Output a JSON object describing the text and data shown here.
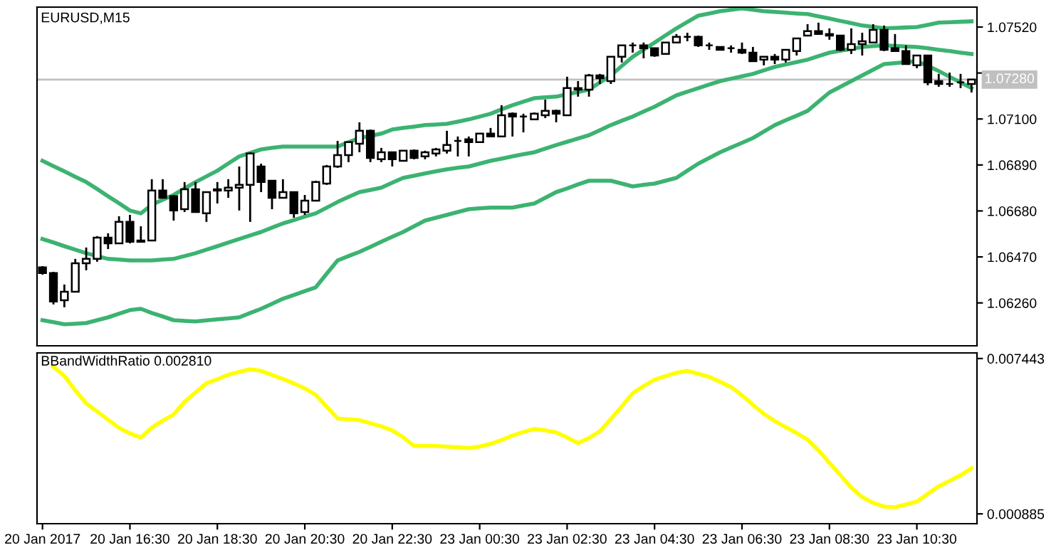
{
  "chart_data": [
    {
      "type": "candlestick",
      "title": "EURUSD,M15",
      "tick_labels": "y",
      "grid": false,
      "ylim": [
        1.06064,
        1.07611
      ],
      "yticks": [
        {
          "value": 1.0752,
          "label": "1.07520"
        },
        {
          "value": 1.0731,
          "label": null
        },
        {
          "value": 1.071,
          "label": "1.07100"
        },
        {
          "value": 1.0689,
          "label": "1.06890"
        },
        {
          "value": 1.0668,
          "label": "1.06680"
        },
        {
          "value": 1.0647,
          "label": "1.06470"
        },
        {
          "value": 1.0626,
          "label": "1.06260"
        }
      ],
      "ref_lines": [
        {
          "axis": "y",
          "value": 1.0728,
          "label": "1.07280",
          "color": "#c0c0c0"
        }
      ],
      "categories": [
        null,
        null,
        null,
        null,
        null,
        null,
        null,
        null,
        null,
        null,
        null,
        null,
        null,
        null,
        null,
        null,
        null,
        null,
        null,
        null,
        null,
        null,
        null,
        null,
        null,
        null,
        null,
        null,
        null,
        null,
        null,
        null,
        null,
        null,
        null,
        null,
        null,
        null,
        null,
        null,
        null,
        null,
        null,
        null,
        null,
        null,
        null,
        null,
        null,
        null,
        null,
        null,
        null,
        null,
        null,
        null,
        null,
        null,
        null,
        null,
        null,
        null,
        null,
        null,
        null,
        null,
        null,
        null,
        null,
        null,
        null,
        null,
        null,
        null,
        null,
        null,
        null,
        null,
        null,
        null,
        null,
        null,
        null,
        null,
        null,
        null
      ],
      "ohlc": [
        [
          1.06422,
          1.06428,
          1.06389,
          1.06396
        ],
        [
          1.06396,
          1.06402,
          1.06253,
          1.06266
        ],
        [
          1.06272,
          1.06344,
          1.0624,
          1.06311
        ],
        [
          1.06311,
          1.06461,
          1.06311,
          1.06441
        ],
        [
          1.06441,
          1.06513,
          1.06409,
          1.06461
        ],
        [
          1.06461,
          1.06565,
          1.06448,
          1.06558
        ],
        [
          1.06558,
          1.06578,
          1.06506,
          1.06532
        ],
        [
          1.06532,
          1.06656,
          1.06532,
          1.0663
        ],
        [
          1.0663,
          1.06662,
          1.06532,
          1.06539
        ],
        [
          1.06539,
          1.0661,
          1.06539,
          1.06545
        ],
        [
          1.06545,
          1.06825,
          1.06545,
          1.06773
        ],
        [
          1.06773,
          1.06825,
          1.0674,
          1.0674
        ],
        [
          1.06747,
          1.06753,
          1.06636,
          1.06682
        ],
        [
          1.06688,
          1.06812,
          1.06675,
          1.06779
        ],
        [
          1.06779,
          1.06812,
          1.06675,
          1.06675
        ],
        [
          1.06669,
          1.06766,
          1.0663,
          1.06766
        ],
        [
          1.06773,
          1.06812,
          1.06714,
          1.06779
        ],
        [
          1.06773,
          1.06825,
          1.0674,
          1.06786
        ],
        [
          1.06786,
          1.06883,
          1.06682,
          1.06799
        ],
        [
          1.06799,
          1.06948,
          1.0663,
          1.06942
        ],
        [
          1.06883,
          1.06896,
          1.06766,
          1.06812
        ],
        [
          1.06818,
          1.06818,
          1.06688,
          1.0674
        ],
        [
          1.0674,
          1.06825,
          1.0674,
          1.06766
        ],
        [
          1.06766,
          1.06766,
          1.06649,
          1.06669
        ],
        [
          1.06675,
          1.06753,
          1.06662,
          1.06727
        ],
        [
          1.06727,
          1.06818,
          1.06727,
          1.06812
        ],
        [
          1.06805,
          1.0689,
          1.06799,
          1.06883
        ],
        [
          1.06883,
          1.07,
          1.06877,
          1.06935
        ],
        [
          1.06935,
          1.06994,
          1.06903,
          1.06994
        ],
        [
          1.06987,
          1.07085,
          1.06948,
          1.07046
        ],
        [
          1.07046,
          1.07052,
          1.06903,
          1.06922
        ],
        [
          1.06916,
          1.06968,
          1.06903,
          1.06948
        ],
        [
          1.06948,
          1.06948,
          1.06883,
          1.06916
        ],
        [
          1.06909,
          1.06955,
          1.06909,
          1.06955
        ],
        [
          1.06955,
          1.06961,
          1.06916,
          1.06922
        ],
        [
          1.06929,
          1.06955,
          1.06916,
          1.06948
        ],
        [
          1.06942,
          1.06968,
          1.06929,
          1.06961
        ],
        [
          1.06955,
          1.07046,
          1.06942,
          1.06981
        ],
        [
          1.07,
          1.0702,
          1.06929,
          1.07
        ],
        [
          1.07007,
          1.0702,
          1.06929,
          1.06994
        ],
        [
          1.06994,
          1.07033,
          1.06994,
          1.07033
        ],
        [
          1.07033,
          1.07059,
          1.0702,
          1.0702
        ],
        [
          1.0702,
          1.07163,
          1.0702,
          1.07117
        ],
        [
          1.07124,
          1.0713,
          1.0702,
          1.07111
        ],
        [
          1.07111,
          1.07124,
          1.07039,
          1.07111
        ],
        [
          1.07098,
          1.0713,
          1.07098,
          1.07124
        ],
        [
          1.07117,
          1.07189,
          1.07104,
          1.07137
        ],
        [
          1.07137,
          1.07143,
          1.07085,
          1.07124
        ],
        [
          1.07117,
          1.07293,
          1.07117,
          1.07241
        ],
        [
          1.07241,
          1.07273,
          1.07202,
          1.07234
        ],
        [
          1.07234,
          1.07306,
          1.07202,
          1.07299
        ],
        [
          1.07299,
          1.07306,
          1.0726,
          1.07286
        ],
        [
          1.07273,
          1.07384,
          1.0726,
          1.07384
        ],
        [
          1.07384,
          1.07436,
          1.07358,
          1.07436
        ],
        [
          1.07436,
          1.07449,
          1.07403,
          1.07436
        ],
        [
          1.07436,
          1.07449,
          1.07377,
          1.07423
        ],
        [
          1.07423,
          1.07423,
          1.07384,
          1.0739
        ],
        [
          1.07397,
          1.07449,
          1.07397,
          1.07449
        ],
        [
          1.07449,
          1.07488,
          1.07449,
          1.07475
        ],
        [
          1.07475,
          1.07494,
          1.07455,
          1.07475
        ],
        [
          1.07475,
          1.07481,
          1.07429,
          1.07436
        ],
        [
          1.07436,
          1.07449,
          1.07416,
          1.07436
        ],
        [
          1.07429,
          1.07429,
          1.07416,
          1.07416
        ],
        [
          1.07423,
          1.07436,
          1.07403,
          1.07423
        ],
        [
          1.07416,
          1.07449,
          1.07397,
          1.07403
        ],
        [
          1.07403,
          1.07429,
          1.07364,
          1.07364
        ],
        [
          1.07371,
          1.07384,
          1.07345,
          1.07384
        ],
        [
          1.07384,
          1.07397,
          1.07351,
          1.07371
        ],
        [
          1.07371,
          1.07416,
          1.07358,
          1.07416
        ],
        [
          1.0741,
          1.07468,
          1.0739,
          1.07468
        ],
        [
          1.07481,
          1.07533,
          1.07481,
          1.07501
        ],
        [
          1.07501,
          1.0754,
          1.07488,
          1.07488
        ],
        [
          1.07488,
          1.07514,
          1.07462,
          1.07481
        ],
        [
          1.07481,
          1.07481,
          1.0741,
          1.07416
        ],
        [
          1.07416,
          1.07514,
          1.07397,
          1.07442
        ],
        [
          1.07442,
          1.07494,
          1.0739,
          1.07455
        ],
        [
          1.07449,
          1.07533,
          1.07449,
          1.07507
        ],
        [
          1.07507,
          1.07527,
          1.0741,
          1.07416
        ],
        [
          1.07423,
          1.07488,
          1.0741,
          1.0741
        ],
        [
          1.0741,
          1.07436,
          1.07351,
          1.07351
        ],
        [
          1.07345,
          1.0739,
          1.07332,
          1.0739
        ],
        [
          1.0739,
          1.0739,
          1.07254,
          1.07267
        ],
        [
          1.07273,
          1.07306,
          1.07247,
          1.0726
        ],
        [
          1.0726,
          1.07312,
          1.07247,
          1.0726
        ],
        [
          1.07267,
          1.07306,
          1.07241,
          1.07267
        ],
        [
          1.0726,
          1.0728,
          1.07221,
          1.0728
        ]
      ],
      "series": [
        {
          "type": "line",
          "color": "#3cb371",
          "values": [
            1.06909,
            1.06885,
            1.06861,
            1.06836,
            1.06812,
            1.0678,
            1.06747,
            1.06715,
            1.06682,
            1.06669,
            1.06708,
            1.06731,
            1.06753,
            1.06783,
            1.06812,
            1.06838,
            1.06864,
            1.06897,
            1.06929,
            1.06945,
            1.06961,
            1.06968,
            1.06974,
            1.06974,
            1.06974,
            1.06974,
            1.06974,
            1.06974,
            1.06994,
            1.07013,
            1.07023,
            1.07033,
            1.07052,
            1.07059,
            1.07065,
            1.07072,
            1.07075,
            1.07078,
            1.07088,
            1.07098,
            1.07111,
            1.07124,
            1.07144,
            1.07163,
            1.07179,
            1.07195,
            1.07199,
            1.07202,
            1.07213,
            1.07223,
            1.07234,
            1.07267,
            1.07299,
            1.07342,
            1.07384,
            1.07417,
            1.07449,
            1.07482,
            1.07514,
            1.07543,
            1.07572,
            1.07582,
            1.07592,
            1.07599,
            1.07605,
            1.07599,
            1.07592,
            1.07589,
            1.07586,
            1.07582,
            1.07579,
            1.07569,
            1.07559,
            1.07548,
            1.07538,
            1.07527,
            1.07521,
            1.07514,
            1.07516,
            1.07518,
            1.0752,
            1.0753,
            1.0754,
            1.07542,
            1.07544,
            1.07546
          ]
        },
        {
          "type": "line",
          "color": "#3cb371",
          "values": [
            1.06552,
            1.06536,
            1.06519,
            1.06503,
            1.06487,
            1.06474,
            1.06461,
            1.06458,
            1.06454,
            1.06454,
            1.06454,
            1.06458,
            1.06461,
            1.06474,
            1.06487,
            1.06503,
            1.06519,
            1.06536,
            1.06552,
            1.06568,
            1.06584,
            1.06604,
            1.06623,
            1.06638,
            1.06654,
            1.06669,
            1.06695,
            1.06721,
            1.06744,
            1.06766,
            1.06776,
            1.06786,
            1.06809,
            1.06831,
            1.06841,
            1.06851,
            1.06861,
            1.0687,
            1.06877,
            1.06883,
            1.06896,
            1.06909,
            1.06919,
            1.06929,
            1.06939,
            1.06948,
            1.06965,
            1.06981,
            1.06996,
            1.07011,
            1.07026,
            1.07049,
            1.07072,
            1.07092,
            1.07111,
            1.07134,
            1.07156,
            1.07182,
            1.07208,
            1.07225,
            1.07241,
            1.07257,
            1.07273,
            1.07284,
            1.07295,
            1.07306,
            1.07322,
            1.07338,
            1.07349,
            1.0736,
            1.07371,
            1.07387,
            1.07403,
            1.07412,
            1.0742,
            1.07429,
            1.07433,
            1.07436,
            1.07434,
            1.07431,
            1.07429,
            1.07423,
            1.07416,
            1.0741,
            1.07403,
            1.07397
          ]
        },
        {
          "type": "line",
          "color": "#3cb371",
          "values": [
            1.06181,
            1.06172,
            1.06162,
            1.06165,
            1.06168,
            1.06181,
            1.06194,
            1.06211,
            1.06227,
            1.06233,
            1.06214,
            1.06198,
            1.06181,
            1.06178,
            1.06175,
            1.0618,
            1.06185,
            1.06189,
            1.06194,
            1.06214,
            1.06233,
            1.06256,
            1.06279,
            1.06296,
            1.06314,
            1.06331,
            1.06393,
            1.06454,
            1.06474,
            1.06493,
            1.06516,
            1.06539,
            1.06562,
            1.06584,
            1.0661,
            1.06636,
            1.06649,
            1.06662,
            1.06675,
            1.06688,
            1.06692,
            1.06695,
            1.06695,
            1.06695,
            1.06705,
            1.06714,
            1.0674,
            1.06766,
            1.06783,
            1.06801,
            1.06818,
            1.06818,
            1.06818,
            1.06805,
            1.06792,
            1.06799,
            1.06805,
            1.06818,
            1.06831,
            1.06864,
            1.06896,
            1.06922,
            1.06948,
            1.0697,
            1.06991,
            1.07013,
            1.07043,
            1.07072,
            1.07094,
            1.07115,
            1.07137,
            1.07179,
            1.07221,
            1.07247,
            1.07273,
            1.07299,
            1.07325,
            1.07351,
            1.07355,
            1.0736,
            1.07364,
            1.07342,
            1.07319,
            1.07293,
            1.07267,
            1.07241
          ]
        }
      ]
    },
    {
      "type": "line",
      "title": "BBandWidthRatio 0.002810",
      "grid": false,
      "ylim": [
        0.00047,
        0.00768
      ],
      "yticks": [
        0.007443,
        0.000885
      ],
      "categories": [
        "20 Jan 2017",
        null,
        null,
        null,
        null,
        null,
        null,
        null,
        "20 Jan 16:30",
        null,
        null,
        null,
        null,
        null,
        null,
        null,
        "20 Jan 18:30",
        null,
        null,
        null,
        null,
        null,
        null,
        null,
        "20 Jan 20:30",
        null,
        null,
        null,
        null,
        null,
        null,
        null,
        "20 Jan 22:30",
        null,
        null,
        null,
        null,
        null,
        null,
        null,
        "23 Jan 00:30",
        null,
        null,
        null,
        null,
        null,
        null,
        null,
        "23 Jan 02:30",
        null,
        null,
        null,
        null,
        null,
        null,
        null,
        "23 Jan 04:30",
        null,
        null,
        null,
        null,
        null,
        null,
        null,
        "23 Jan 06:30",
        null,
        null,
        null,
        null,
        null,
        null,
        null,
        "23 Jan 08:30",
        null,
        null,
        null,
        null,
        null,
        null,
        null,
        "23 Jan 10:30",
        null,
        null,
        null,
        null,
        null
      ],
      "series": [
        {
          "color": "#ffff00",
          "values": [
            null,
            0.00709,
            0.00671,
            0.0061,
            0.00555,
            0.00521,
            0.00486,
            0.00452,
            0.00428,
            0.00411,
            0.00452,
            0.00482,
            0.00508,
            0.00562,
            0.00601,
            0.0064,
            0.00657,
            0.00676,
            0.00688,
            0.00699,
            0.00692,
            0.00675,
            0.00658,
            0.00639,
            0.00618,
            0.00591,
            0.00541,
            0.00491,
            0.00488,
            0.00484,
            0.00471,
            0.00458,
            0.00441,
            0.00412,
            0.00375,
            0.00375,
            0.00375,
            0.00372,
            0.0037,
            0.00366,
            0.00373,
            0.00384,
            0.004,
            0.00419,
            0.00434,
            0.00447,
            0.00441,
            0.00432,
            0.00411,
            0.00387,
            0.00409,
            0.00437,
            0.00489,
            0.00542,
            0.00598,
            0.00628,
            0.00655,
            0.0067,
            0.00684,
            0.00692,
            0.0068,
            0.00667,
            0.00646,
            0.00624,
            0.00589,
            0.00549,
            0.00511,
            0.0048,
            0.00455,
            0.0043,
            0.00402,
            0.00356,
            0.00304,
            0.00252,
            0.00199,
            0.00159,
            0.00135,
            0.00119,
            0.00117,
            0.00128,
            0.0014,
            0.00173,
            0.00205,
            0.00228,
            0.00251,
            0.00281
          ]
        }
      ]
    }
  ]
}
